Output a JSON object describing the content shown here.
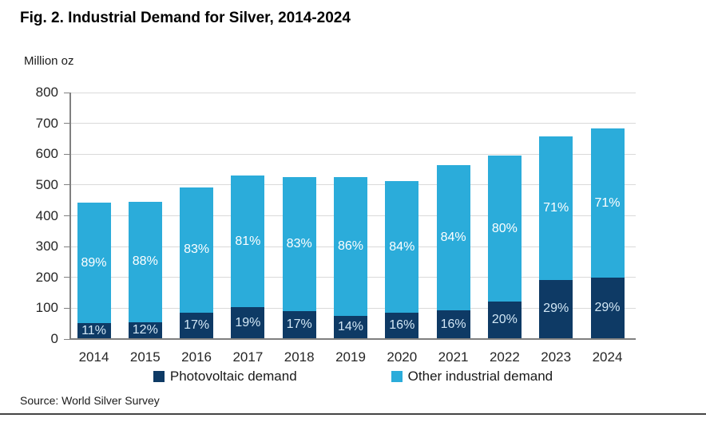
{
  "figure": {
    "title": "Fig. 2. Industrial Demand for Silver, 2014-2024",
    "unit_label": "Million oz",
    "source": "Source: World Silver Survey"
  },
  "chart_data": {
    "type": "bar",
    "stacked": true,
    "title": "Fig. 2. Industrial Demand for Silver, 2014-2024",
    "ylabel": "Million oz",
    "xlabel": "",
    "ylim": [
      0,
      800
    ],
    "yticks": [
      0,
      100,
      200,
      300,
      400,
      500,
      600,
      700,
      800
    ],
    "grid": "horizontal",
    "legend_position": "bottom",
    "categories": [
      "2014",
      "2015",
      "2016",
      "2017",
      "2018",
      "2019",
      "2020",
      "2021",
      "2022",
      "2023",
      "2024"
    ],
    "series": [
      {
        "name": "Photovoltaic demand",
        "color": "#0e3a65",
        "label_color": "#d3e8f6",
        "values": [
          48,
          53,
          83,
          100,
          89,
          73,
          82,
          90,
          118,
          190,
          197
        ],
        "pct_labels": [
          "11%",
          "12%",
          "17%",
          "19%",
          "17%",
          "14%",
          "16%",
          "16%",
          "20%",
          "29%",
          "29%"
        ]
      },
      {
        "name": "Other industrial demand",
        "color": "#2bacda",
        "label_color": "#ffffff",
        "values": [
          392,
          390,
          407,
          427,
          434,
          451,
          428,
          472,
          474,
          465,
          483
        ],
        "pct_labels": [
          "89%",
          "88%",
          "83%",
          "81%",
          "83%",
          "86%",
          "84%",
          "84%",
          "80%",
          "71%",
          "71%"
        ]
      }
    ],
    "totals": [
      440,
      443,
      490,
      527,
      523,
      524,
      510,
      562,
      592,
      655,
      680
    ],
    "axis_color": "#808080",
    "grid_color": "#d9d9d9"
  }
}
